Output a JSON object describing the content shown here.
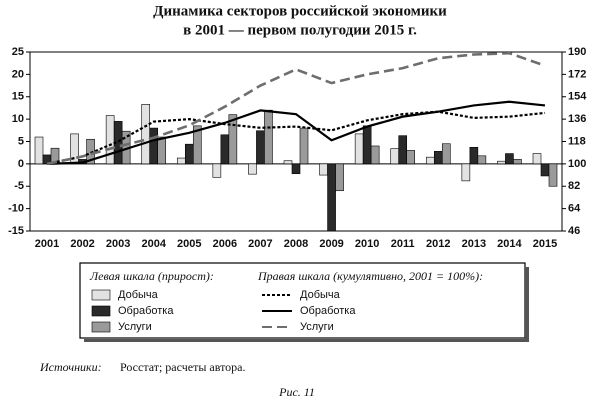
{
  "chart_data": {
    "type": "bar",
    "title": [
      "Динамика секторов российской экономики",
      "в 2001 — первом полугодии 2015 г."
    ],
    "categories": [
      "2001",
      "2002",
      "2003",
      "2004",
      "2005",
      "2006",
      "2007",
      "2008",
      "2009",
      "2010",
      "2011",
      "2012",
      "2013",
      "2014",
      "2015"
    ],
    "series": [
      {
        "name": "Добыча",
        "type": "bar",
        "color": "#e2e2e2",
        "values": [
          6,
          6.7,
          10.8,
          13.3,
          1.3,
          -3,
          -2.3,
          0.7,
          -2.5,
          6.7,
          3.4,
          1.5,
          -3.8,
          0.6,
          2.3
        ]
      },
      {
        "name": "Обработка",
        "type": "bar",
        "color": "#2a2a2a",
        "values": [
          2,
          1,
          9.5,
          8,
          4.4,
          6.5,
          7.4,
          -2.2,
          -15,
          8.5,
          6.3,
          2.8,
          3.7,
          2.3,
          -2.7
        ]
      },
      {
        "name": "Услуги",
        "type": "bar",
        "color": "#9a9a9a",
        "values": [
          3.5,
          5.5,
          7.3,
          6,
          8.5,
          11,
          12,
          8,
          -6,
          4,
          3,
          4.5,
          1.8,
          1,
          -5
        ]
      },
      {
        "name": "Добыча",
        "type": "line",
        "axis": "y2",
        "color": "#000000",
        "line_style": "dotted",
        "values": [
          100,
          106,
          118,
          134,
          136,
          132,
          129,
          130,
          127,
          135,
          140,
          142,
          137,
          138,
          141
        ]
      },
      {
        "name": "Обработка",
        "type": "line",
        "axis": "y2",
        "color": "#000000",
        "line_style": "solid",
        "values": [
          100,
          101,
          110,
          119,
          125,
          133,
          143,
          140,
          119,
          130,
          138,
          142,
          147,
          150,
          147
        ]
      },
      {
        "name": "Услуги",
        "type": "line",
        "axis": "y2",
        "color": "#6e6e6e",
        "line_style": "dashed",
        "values": [
          100,
          106,
          114,
          121,
          131,
          146,
          163,
          176,
          165,
          172,
          177,
          185,
          188,
          189,
          179
        ]
      }
    ],
    "ylim": [
      -15,
      25
    ],
    "yticks": [
      -15,
      -10,
      -5,
      0,
      5,
      10,
      15,
      20,
      25
    ],
    "y2lim": [
      46,
      190
    ],
    "y2ticks": [
      46,
      64,
      82,
      100,
      118,
      136,
      154,
      172,
      190
    ],
    "legend_left_title": "Левая шкала (прирост):",
    "legend_right_title": "Правая шкала (кумулятивно, 2001 = 100%):",
    "source_label": "Источники:",
    "source_text": "Росстат; расчеты автора.",
    "caption": "Рис. 11"
  }
}
